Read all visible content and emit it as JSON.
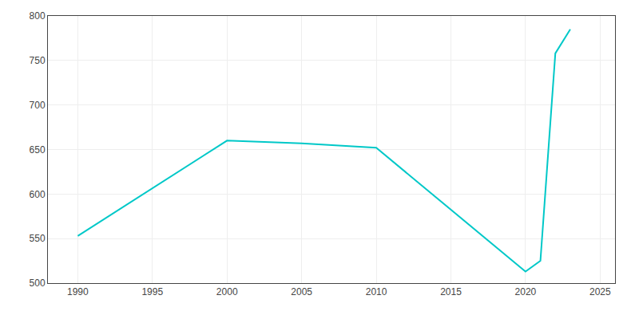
{
  "chart_data": {
    "type": "line",
    "x": [
      1990,
      2000,
      2005,
      2010,
      2020,
      2021,
      2022,
      2023
    ],
    "values": [
      553,
      660,
      657,
      652,
      513,
      525,
      758,
      785
    ],
    "color": "#00C8C8",
    "xlim": [
      1988,
      2026
    ],
    "ylim": [
      500,
      800
    ],
    "xticks": [
      1990,
      1995,
      2000,
      2005,
      2010,
      2015,
      2020,
      2025
    ],
    "yticks": [
      500,
      550,
      600,
      650,
      700,
      750,
      800
    ],
    "grid": true
  }
}
